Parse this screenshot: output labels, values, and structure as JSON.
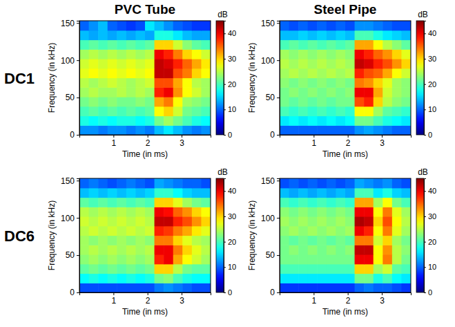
{
  "column_titles": [
    "PVC Tube",
    "Steel Pipe"
  ],
  "row_titles": [
    "DC1",
    "DC6"
  ],
  "chart_data": [
    {
      "type": "heatmap",
      "x_label": "Time (in ms)",
      "y_label": "Frequency (in kHz)",
      "xlim": [
        0,
        3.85
      ],
      "xticks": [
        1,
        2,
        3
      ],
      "ylim": [
        0,
        153
      ],
      "yticks": [
        0,
        50,
        100,
        150
      ],
      "colorbar": {
        "label": "dB",
        "range": [
          0,
          45
        ],
        "ticks": [
          0,
          10,
          20,
          30,
          40
        ]
      },
      "cells": [
        [
          12,
          12,
          11,
          12,
          12,
          11,
          12,
          11,
          14,
          16,
          14,
          12,
          11,
          12
        ],
        [
          18,
          17,
          18,
          17,
          18,
          18,
          17,
          18,
          22,
          24,
          22,
          20,
          18,
          17
        ],
        [
          20,
          21,
          20,
          21,
          20,
          21,
          20,
          21,
          28,
          30,
          26,
          22,
          21,
          20
        ],
        [
          22,
          23,
          22,
          23,
          22,
          22,
          23,
          22,
          32,
          34,
          28,
          24,
          23,
          22
        ],
        [
          24,
          25,
          24,
          24,
          25,
          24,
          25,
          24,
          38,
          40,
          33,
          28,
          26,
          24
        ],
        [
          25,
          24,
          25,
          26,
          25,
          24,
          25,
          26,
          36,
          36,
          32,
          28,
          25,
          24
        ],
        [
          27,
          28,
          27,
          28,
          27,
          28,
          27,
          28,
          42,
          42,
          36,
          34,
          30,
          28
        ],
        [
          26,
          27,
          26,
          27,
          26,
          27,
          26,
          27,
          42,
          41,
          38,
          35,
          32,
          29
        ],
        [
          24,
          25,
          24,
          25,
          24,
          25,
          24,
          25,
          40,
          38,
          34,
          30,
          28,
          26
        ],
        [
          20,
          21,
          20,
          21,
          20,
          21,
          20,
          21,
          30,
          30,
          26,
          23,
          21,
          20
        ],
        [
          14,
          13,
          14,
          13,
          14,
          13,
          14,
          13,
          18,
          18,
          16,
          14,
          13,
          13
        ],
        [
          10,
          12,
          14,
          10,
          9,
          8,
          9,
          16,
          14,
          12,
          10,
          9,
          8,
          8
        ]
      ]
    },
    {
      "type": "heatmap",
      "x_label": "Time (in ms)",
      "y_label": "Frequency (in kHz)",
      "xlim": [
        0,
        3.85
      ],
      "xticks": [
        1,
        2,
        3
      ],
      "ylim": [
        0,
        153
      ],
      "yticks": [
        0,
        50,
        100,
        150
      ],
      "colorbar": {
        "label": "dB",
        "range": [
          0,
          45
        ],
        "ticks": [
          0,
          10,
          20,
          30,
          40
        ]
      },
      "cells": [
        [
          10,
          10,
          10,
          10,
          10,
          10,
          10,
          10,
          12,
          13,
          12,
          11,
          10,
          10
        ],
        [
          16,
          17,
          16,
          17,
          16,
          17,
          16,
          17,
          22,
          22,
          20,
          18,
          17,
          16
        ],
        [
          20,
          19,
          20,
          19,
          20,
          19,
          20,
          19,
          28,
          28,
          24,
          21,
          20,
          19
        ],
        [
          22,
          21,
          22,
          21,
          22,
          21,
          22,
          22,
          36,
          38,
          30,
          25,
          23,
          22
        ],
        [
          22,
          23,
          22,
          23,
          22,
          23,
          22,
          23,
          40,
          40,
          32,
          26,
          24,
          23
        ],
        [
          23,
          22,
          23,
          22,
          23,
          22,
          23,
          22,
          34,
          33,
          30,
          27,
          24,
          23
        ],
        [
          24,
          25,
          24,
          25,
          24,
          25,
          24,
          25,
          38,
          36,
          35,
          32,
          28,
          26
        ],
        [
          25,
          24,
          25,
          24,
          25,
          24,
          25,
          24,
          42,
          41,
          38,
          36,
          33,
          30
        ],
        [
          24,
          23,
          24,
          23,
          24,
          23,
          24,
          23,
          40,
          38,
          35,
          33,
          30,
          27
        ],
        [
          20,
          21,
          20,
          21,
          20,
          21,
          20,
          21,
          32,
          32,
          28,
          25,
          23,
          21
        ],
        [
          14,
          14,
          15,
          14,
          15,
          14,
          15,
          14,
          20,
          20,
          18,
          16,
          15,
          14
        ],
        [
          10,
          9,
          10,
          9,
          10,
          9,
          10,
          9,
          12,
          12,
          11,
          10,
          9,
          9
        ]
      ]
    },
    {
      "type": "heatmap",
      "x_label": "Time (in ms)",
      "y_label": "Frequency (in kHz)",
      "xlim": [
        0,
        3.85
      ],
      "xticks": [
        1,
        2,
        3
      ],
      "ylim": [
        0,
        153
      ],
      "yticks": [
        0,
        50,
        100,
        150
      ],
      "colorbar": {
        "label": "dB",
        "range": [
          0,
          45
        ],
        "ticks": [
          0,
          10,
          20,
          30,
          40
        ]
      },
      "cells": [
        [
          9,
          9,
          9,
          9,
          9,
          9,
          9,
          9,
          11,
          12,
          11,
          10,
          9,
          9
        ],
        [
          17,
          18,
          17,
          18,
          17,
          18,
          17,
          18,
          22,
          23,
          20,
          18,
          17,
          17
        ],
        [
          21,
          22,
          21,
          22,
          21,
          22,
          21,
          22,
          30,
          30,
          25,
          22,
          21,
          21
        ],
        [
          23,
          24,
          23,
          24,
          23,
          24,
          23,
          24,
          38,
          40,
          32,
          28,
          26,
          24
        ],
        [
          24,
          25,
          24,
          25,
          24,
          25,
          24,
          25,
          40,
          40,
          34,
          30,
          27,
          25
        ],
        [
          24,
          23,
          24,
          23,
          24,
          23,
          24,
          23,
          34,
          34,
          30,
          27,
          25,
          24
        ],
        [
          25,
          26,
          25,
          26,
          25,
          26,
          25,
          26,
          38,
          37,
          34,
          32,
          29,
          27
        ],
        [
          26,
          25,
          26,
          25,
          26,
          25,
          26,
          25,
          42,
          42,
          38,
          36,
          33,
          30
        ],
        [
          25,
          24,
          25,
          24,
          25,
          24,
          25,
          24,
          40,
          39,
          35,
          33,
          30,
          28
        ],
        [
          21,
          20,
          21,
          20,
          21,
          20,
          21,
          20,
          30,
          30,
          27,
          24,
          22,
          21
        ],
        [
          14,
          15,
          14,
          15,
          14,
          15,
          14,
          15,
          19,
          19,
          17,
          15,
          14,
          14
        ],
        [
          10,
          11,
          10,
          9,
          10,
          11,
          10,
          9,
          13,
          12,
          11,
          10,
          10,
          9
        ]
      ]
    },
    {
      "type": "heatmap",
      "x_label": "Time (in ms)",
      "y_label": "Frequency (in kHz)",
      "xlim": [
        0,
        3.85
      ],
      "xticks": [
        1,
        2,
        3
      ],
      "ylim": [
        0,
        153
      ],
      "yticks": [
        0,
        50,
        100,
        150
      ],
      "colorbar": {
        "label": "dB",
        "range": [
          0,
          45
        ],
        "ticks": [
          0,
          10,
          20,
          30,
          40
        ]
      },
      "cells": [
        [
          8,
          8,
          8,
          8,
          8,
          8,
          8,
          8,
          10,
          11,
          10,
          10,
          9,
          8
        ],
        [
          16,
          16,
          16,
          16,
          16,
          16,
          16,
          16,
          22,
          22,
          18,
          20,
          17,
          16
        ],
        [
          20,
          20,
          20,
          20,
          20,
          20,
          20,
          20,
          30,
          30,
          24,
          26,
          21,
          20
        ],
        [
          22,
          22,
          22,
          22,
          22,
          22,
          22,
          22,
          40,
          40,
          28,
          34,
          25,
          22
        ],
        [
          22,
          23,
          22,
          23,
          22,
          23,
          22,
          23,
          42,
          42,
          28,
          33,
          25,
          23
        ],
        [
          22,
          21,
          22,
          21,
          22,
          21,
          22,
          21,
          34,
          34,
          26,
          30,
          24,
          22
        ],
        [
          23,
          24,
          23,
          24,
          23,
          24,
          23,
          24,
          40,
          38,
          28,
          34,
          27,
          24
        ],
        [
          24,
          23,
          24,
          23,
          24,
          23,
          24,
          23,
          43,
          42,
          30,
          36,
          28,
          25
        ],
        [
          23,
          22,
          23,
          22,
          23,
          22,
          23,
          22,
          40,
          40,
          28,
          34,
          27,
          24
        ],
        [
          20,
          19,
          20,
          19,
          20,
          19,
          20,
          19,
          32,
          32,
          24,
          28,
          22,
          20
        ],
        [
          14,
          13,
          14,
          13,
          14,
          13,
          14,
          13,
          20,
          20,
          16,
          18,
          15,
          14
        ],
        [
          9,
          10,
          9,
          10,
          9,
          10,
          9,
          10,
          13,
          12,
          11,
          12,
          10,
          9
        ]
      ]
    }
  ]
}
